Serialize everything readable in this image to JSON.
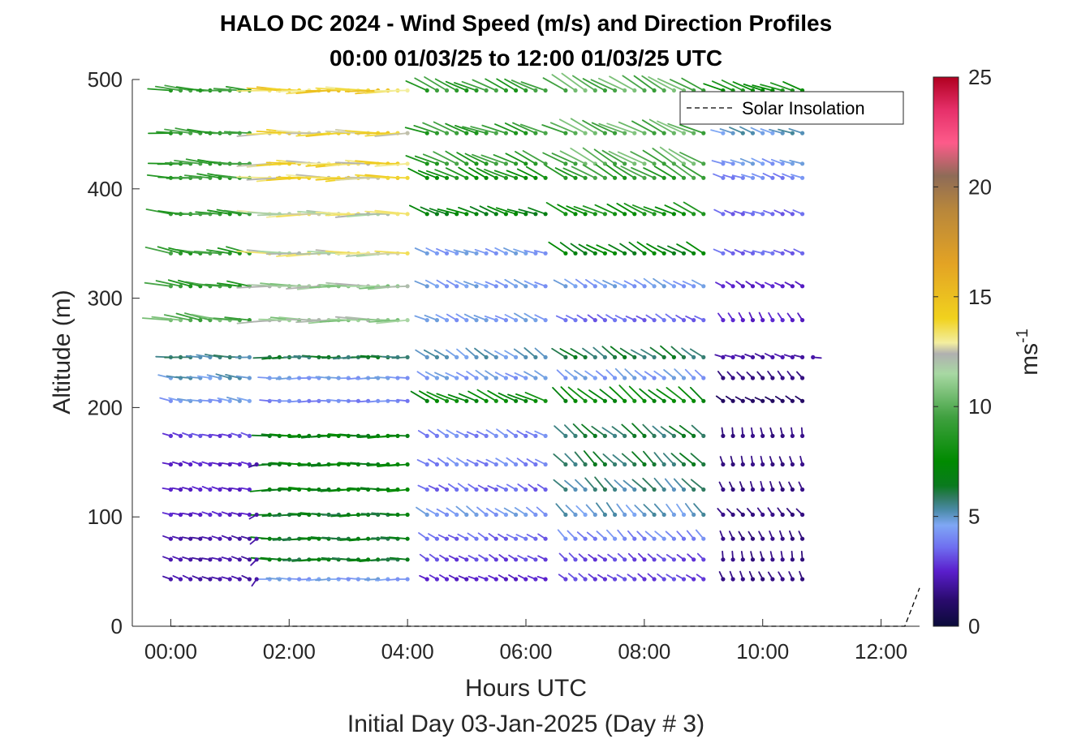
{
  "chart_data": {
    "type": "wind-barb-profile",
    "title": "HALO DC 2024 - Wind Speed (m/s) and Direction Profiles",
    "subtitle": "00:00 01/03/25 to 12:00 01/03/25  UTC",
    "xlabel": "Hours UTC",
    "xlabel2": "Initial Day 03-Jan-2025 (Day # 3)",
    "ylabel": "Altitude (m)",
    "xlim_hours": [
      -0.65,
      12.65
    ],
    "ylim": [
      0,
      500
    ],
    "x_ticks": [
      {
        "hour": 0,
        "label": "00:00"
      },
      {
        "hour": 2,
        "label": "02:00"
      },
      {
        "hour": 4,
        "label": "04:00"
      },
      {
        "hour": 6,
        "label": "06:00"
      },
      {
        "hour": 8,
        "label": "08:00"
      },
      {
        "hour": 10,
        "label": "10:00"
      },
      {
        "hour": 12,
        "label": "12:00"
      }
    ],
    "y_ticks": [
      0,
      100,
      200,
      300,
      400,
      500
    ],
    "colorbar": {
      "label_base": "ms",
      "label_exp": "-1",
      "range": [
        0,
        25
      ],
      "ticks": [
        0,
        5,
        10,
        15,
        20,
        25
      ]
    },
    "legend": {
      "entries": [
        "Solar Insolation"
      ],
      "placement": "top-right"
    },
    "solar_insolation": {
      "x_hours": [
        0,
        4,
        8,
        12.4,
        12.65
      ],
      "y": [
        0,
        0,
        0,
        0,
        35
      ]
    },
    "altitudes": [
      43,
      61,
      80,
      102,
      125,
      148,
      174,
      206,
      227,
      246,
      280,
      311,
      341,
      377,
      410,
      423,
      451,
      490
    ],
    "segments": [
      {
        "times": [
          0,
          1.33
        ],
        "speed": [
          2,
          2,
          2,
          2.5,
          2.5,
          2.5,
          3,
          4.5,
          5,
          5.5,
          10,
          9,
          9,
          9,
          9,
          9,
          9,
          9
        ],
        "dir": [
          290,
          285,
          285,
          285,
          285,
          285,
          285,
          280,
          280,
          275,
          280,
          280,
          280,
          275,
          275,
          275,
          275,
          275
        ]
      },
      {
        "times": [
          1.67,
          4
        ],
        "speed": [
          4.5,
          6.5,
          6.5,
          6.5,
          7,
          7,
          7,
          4,
          4.5,
          6,
          11.5,
          11.5,
          12.5,
          12.5,
          13.5,
          13.5,
          13.5,
          14
        ],
        "dir": [
          270,
          270,
          270,
          270,
          270,
          270,
          270,
          270,
          270,
          270,
          270,
          270,
          270,
          270,
          270,
          270,
          270,
          270
        ]
      },
      {
        "times": [
          4.33,
          6.33
        ],
        "speed": [
          2.5,
          3,
          3.5,
          4.5,
          3.5,
          4,
          4,
          7.5,
          4.5,
          5,
          4.5,
          4.5,
          4.5,
          7,
          8,
          9,
          9,
          9
        ],
        "dir": [
          295,
          300,
          300,
          305,
          300,
          300,
          300,
          295,
          300,
          305,
          295,
          295,
          290,
          290,
          295,
          295,
          290,
          295
        ]
      },
      {
        "times": [
          6.67,
          9
        ],
        "speed": [
          3,
          3,
          4,
          5,
          5.5,
          6,
          6,
          7.5,
          4.5,
          6,
          3.5,
          4.5,
          7,
          8,
          9,
          10,
          10,
          10
        ],
        "dir": [
          305,
          310,
          315,
          320,
          315,
          315,
          310,
          310,
          310,
          305,
          300,
          300,
          300,
          295,
          300,
          300,
          295,
          300
        ]
      },
      {
        "times": [
          9.33,
          10.67
        ],
        "speed": [
          1.5,
          1.5,
          1.5,
          1.5,
          1.5,
          1.5,
          1.5,
          1,
          1.5,
          2,
          2.5,
          2.5,
          3.5,
          3.5,
          4,
          4.5,
          5,
          8
        ],
        "dir": [
          335,
          350,
          335,
          320,
          340,
          345,
          350,
          300,
          320,
          290,
          330,
          300,
          290,
          290,
          290,
          290,
          290,
          290
        ]
      }
    ],
    "extras": [
      {
        "hour": 1.45,
        "altitude": 148,
        "speed": 2,
        "dir": 250
      },
      {
        "hour": 1.45,
        "altitude": 102,
        "speed": 2,
        "dir": 240
      },
      {
        "hour": 1.45,
        "altitude": 80,
        "speed": 2,
        "dir": 230
      },
      {
        "hour": 1.45,
        "altitude": 61,
        "speed": 2,
        "dir": 225
      },
      {
        "hour": 1.45,
        "altitude": 43,
        "speed": 2,
        "dir": 215
      },
      {
        "hour": 10.85,
        "altitude": 246,
        "speed": 2,
        "dir": 95
      }
    ]
  }
}
